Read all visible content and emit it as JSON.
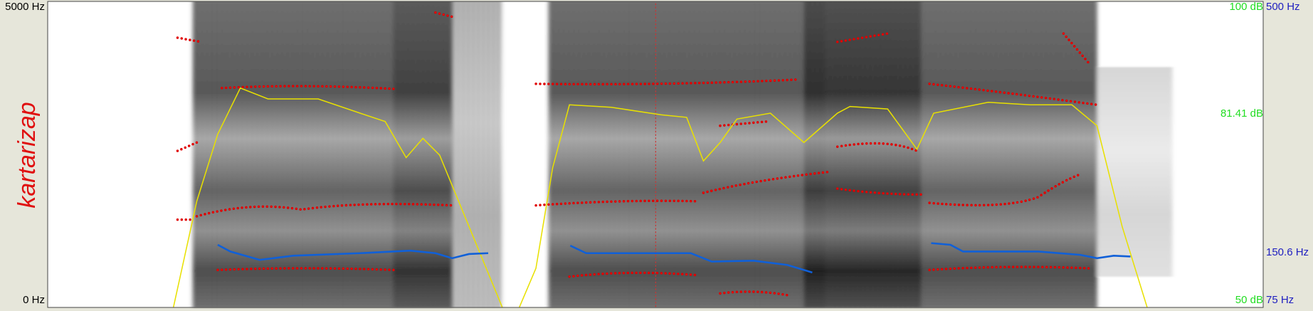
{
  "frequency_axis": {
    "top": "5000 Hz",
    "bottom": "0 Hz"
  },
  "tier_label": "kartarizap",
  "intensity_axis": {
    "top": "100 dB",
    "middle": "81.41 dB",
    "bottom": "50 dB"
  },
  "pitch_axis": {
    "top": "500 Hz",
    "middle": "150.6 Hz",
    "bottom": "75 Hz"
  }
}
